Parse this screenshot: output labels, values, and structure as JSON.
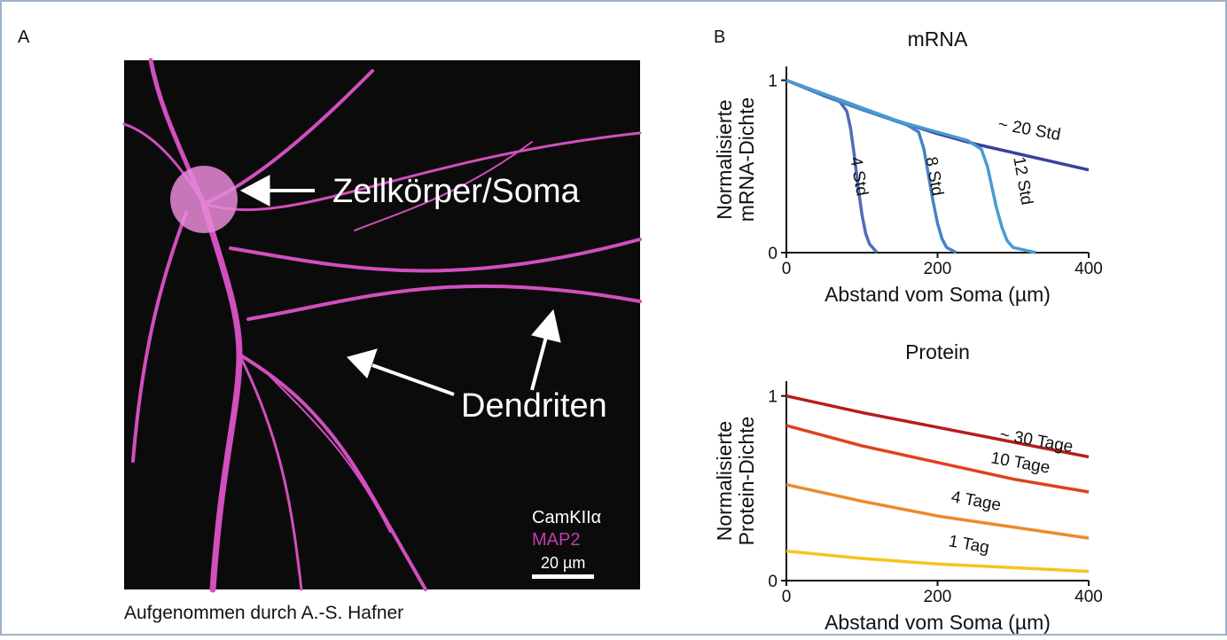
{
  "panel_labels": [
    "A",
    "B"
  ],
  "image": {
    "soma_label": "Zellkörper/Soma",
    "dendrite_label": "Dendriten",
    "stain_1": "CamKIIα",
    "stain_2": "MAP2",
    "scale_bar": "20 µm",
    "caption": "Aufgenommen durch A.-S. Hafner"
  },
  "chart_data": [
    {
      "type": "line",
      "title": "mRNA",
      "x_label": "Abstand vom Soma (µm)",
      "y_label": [
        "Normalisierte",
        "mRNA-Dichte"
      ],
      "xlim": [
        0,
        400
      ],
      "ylim": [
        0,
        1.08
      ],
      "xticks": [
        0,
        200,
        400
      ],
      "yticks": [
        0,
        1
      ],
      "series": [
        {
          "name": "~ 20 Std",
          "color": "#3b3f9e",
          "x": [
            0,
            50,
            100,
            150,
            200,
            250,
            300,
            350,
            400
          ],
          "values": [
            1,
            0.91,
            0.83,
            0.76,
            0.69,
            0.63,
            0.58,
            0.53,
            0.48
          ]
        },
        {
          "name": "4 Std",
          "color": "#4f6cb8",
          "x": [
            0,
            40,
            70,
            80,
            85,
            90,
            95,
            100,
            105,
            110,
            120
          ],
          "values": [
            1,
            0.93,
            0.88,
            0.82,
            0.72,
            0.56,
            0.38,
            0.22,
            0.11,
            0.05,
            0
          ]
        },
        {
          "name": "8 Std",
          "color": "#4582c4",
          "x": [
            0,
            100,
            160,
            175,
            182,
            188,
            194,
            200,
            206,
            212,
            225
          ],
          "values": [
            1,
            0.83,
            0.74,
            0.7,
            0.6,
            0.45,
            0.3,
            0.17,
            0.08,
            0.03,
            0
          ]
        },
        {
          "name": "12 Std",
          "color": "#4a9ad0",
          "x": [
            0,
            150,
            240,
            258,
            266,
            272,
            278,
            285,
            292,
            300,
            330
          ],
          "values": [
            1,
            0.76,
            0.65,
            0.6,
            0.5,
            0.38,
            0.26,
            0.15,
            0.07,
            0.03,
            0
          ]
        }
      ]
    },
    {
      "type": "line",
      "title": "Protein",
      "x_label": "Abstand vom Soma (µm)",
      "y_label": [
        "Normalisierte",
        "Protein-Dichte"
      ],
      "xlim": [
        0,
        400
      ],
      "ylim": [
        0,
        1.08
      ],
      "xticks": [
        0,
        200,
        400
      ],
      "yticks": [
        0,
        1
      ],
      "series": [
        {
          "name": "~ 30 Tage",
          "color": "#b81c1c",
          "x": [
            0,
            100,
            200,
            300,
            400
          ],
          "values": [
            1,
            0.91,
            0.83,
            0.75,
            0.67
          ]
        },
        {
          "name": "10 Tage",
          "color": "#e0401e",
          "x": [
            0,
            100,
            200,
            300,
            400
          ],
          "values": [
            0.84,
            0.73,
            0.64,
            0.55,
            0.48
          ]
        },
        {
          "name": "4 Tage",
          "color": "#ec8a2a",
          "x": [
            0,
            100,
            200,
            300,
            400
          ],
          "values": [
            0.52,
            0.43,
            0.35,
            0.29,
            0.23
          ]
        },
        {
          "name": "1 Tag",
          "color": "#f5c41e",
          "x": [
            0,
            100,
            200,
            300,
            400
          ],
          "values": [
            0.16,
            0.12,
            0.09,
            0.07,
            0.05
          ]
        }
      ]
    }
  ]
}
